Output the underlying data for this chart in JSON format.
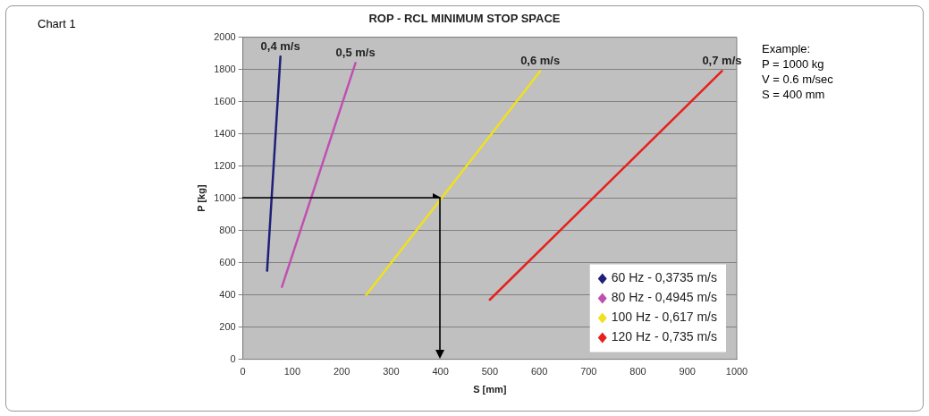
{
  "chart_data": {
    "type": "line",
    "title": "ROP - RCL MINIMUM STOP SPACE",
    "xlabel": "S [mm]",
    "ylabel": "P [kg]",
    "xlim": [
      0,
      1000
    ],
    "xticks": [
      0,
      100,
      200,
      300,
      400,
      500,
      600,
      700,
      800,
      900,
      1000
    ],
    "ylim": [
      0,
      2000
    ],
    "yticks": [
      0,
      200,
      400,
      600,
      800,
      1000,
      1200,
      1400,
      1600,
      1800,
      2000
    ],
    "grid": "y",
    "legend": "bottom right",
    "marker": "none",
    "line_style": "solid",
    "series": [
      {
        "name": "60 Hz - 0,3735 m/s",
        "color": "#1f1f7a",
        "x": [
          49,
          76
        ],
        "values": [
          550,
          1880
        ]
      },
      {
        "name": "80 Hz - 0,4945 m/s",
        "color": "#c050b0",
        "x": [
          79,
          228
        ],
        "values": [
          450,
          1840
        ]
      },
      {
        "name": "100 Hz - 0,617 m/s",
        "color": "#f0e020",
        "x": [
          250,
          602
        ],
        "values": [
          400,
          1790
        ]
      },
      {
        "name": "120 Hz - 0,735 m/s",
        "color": "#e8201c",
        "x": [
          500,
          970
        ],
        "values": [
          370,
          1790
        ]
      }
    ],
    "annotations": [
      {
        "text": "0,4 m/s",
        "x": 76,
        "y": 1880
      },
      {
        "text": "0,5 m/s",
        "x": 228,
        "y": 1840
      },
      {
        "text": "0,6 m/s",
        "x": 602,
        "y": 1790
      },
      {
        "text": "0,7 m/s",
        "x": 970,
        "y": 1790
      },
      "Chart 1",
      "Example:\nP = 1000 kg\nV = 0.6 m/sec\nS = 400 mm"
    ]
  }
}
